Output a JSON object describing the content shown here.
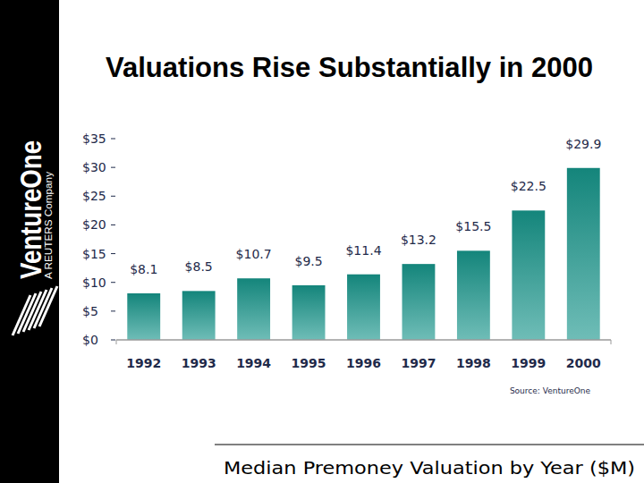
{
  "chart_data": {
    "type": "bar",
    "title": "Valuations Rise Substantially in 2000",
    "caption": "Median Premoney Valuation by Year ($M)",
    "source": "Source: VentureOne",
    "brand": {
      "name": "VentureOne",
      "tagline": "A REUTERS Company"
    },
    "categories": [
      "1992",
      "1993",
      "1994",
      "1995",
      "1996",
      "1997",
      "1998",
      "1999",
      "2000"
    ],
    "values": [
      8.1,
      8.5,
      10.7,
      9.5,
      11.4,
      13.2,
      15.5,
      22.5,
      29.9
    ],
    "value_labels": [
      "$8.1",
      "$8.5",
      "$10.7",
      "$9.5",
      "$11.4",
      "$13.2",
      "$15.5",
      "$22.5",
      "$29.9"
    ],
    "color": "#14857b",
    "ylim": [
      0,
      35
    ],
    "yticks": [
      {
        "value": 0,
        "label": "$0"
      },
      {
        "value": 5,
        "label": "$5"
      },
      {
        "value": 10,
        "label": "$10"
      },
      {
        "value": 15,
        "label": "$15"
      },
      {
        "value": 20,
        "label": "$20"
      },
      {
        "value": 25,
        "label": "$25"
      },
      {
        "value": 30,
        "label": "$30"
      },
      {
        "value": 35,
        "label": "$35"
      }
    ],
    "grid": false,
    "data_labels": true
  }
}
